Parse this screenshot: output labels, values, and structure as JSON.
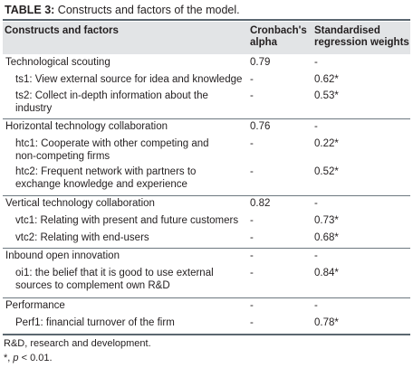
{
  "caption": {
    "label": "TABLE 3:",
    "text": " Constructs and factors of the model."
  },
  "header": {
    "constructs": "Constructs and factors",
    "alpha_line1": "Cronbach's",
    "alpha_line2": "alpha",
    "weights_line1": "Standardised",
    "weights_line2": "regression weights"
  },
  "rows": [
    {
      "text": [
        "Technological scouting"
      ],
      "alpha": "0.79",
      "weight": "-"
    },
    {
      "text": [
        "ts1: View external source for idea and knowledge"
      ],
      "alpha": "-",
      "weight": "0.62*"
    },
    {
      "text": [
        "ts2: Collect in-depth information about the",
        "industry"
      ],
      "alpha": "-",
      "weight": "0.53*"
    },
    {
      "text": [
        "Horizontal technology collaboration"
      ],
      "alpha": "0.76",
      "weight": "-"
    },
    {
      "text": [
        "htc1: Cooperate with other competing and",
        "non-competing firms"
      ],
      "alpha": "-",
      "weight": "0.22*"
    },
    {
      "text": [
        "htc2: Frequent network with partners to",
        "exchange knowledge and experience"
      ],
      "alpha": "-",
      "weight": "0.52*"
    },
    {
      "text": [
        "Vertical technology collaboration"
      ],
      "alpha": "0.82",
      "weight": "-"
    },
    {
      "text": [
        "vtc1: Relating with present and future customers"
      ],
      "alpha": "-",
      "weight": "0.73*"
    },
    {
      "text": [
        "vtc2: Relating with end-users"
      ],
      "alpha": "-",
      "weight": "0.68*"
    },
    {
      "text": [
        "Inbound open innovation"
      ],
      "alpha": "-",
      "weight": "-"
    },
    {
      "text": [
        "oi1: the belief that it is good to use external",
        "sources to complement own R&D"
      ],
      "alpha": "-",
      "weight": "0.84*"
    },
    {
      "text": [
        "Performance"
      ],
      "alpha": "-",
      "weight": "-"
    },
    {
      "text": [
        "Perf1: financial turnover of the firm"
      ],
      "alpha": "-",
      "weight": "0.78*"
    }
  ],
  "notes": {
    "abbrev": "R&D, research and development.",
    "sig_star": "*, ",
    "sig_p": "p",
    "sig_rest": " < 0.01."
  }
}
